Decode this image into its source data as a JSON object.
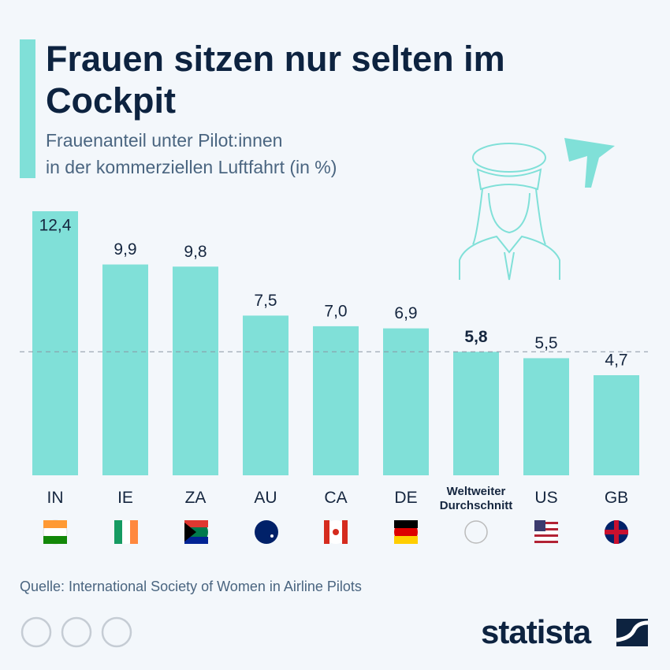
{
  "chart_data": {
    "type": "bar",
    "title": "Frauen sitzen nur selten im Cockpit",
    "subtitle": [
      "Frauenanteil unter Pilot:innen",
      "in der kommerziellen Luftfahrt (in %)"
    ],
    "categories": [
      "IN",
      "IE",
      "ZA",
      "AU",
      "CA",
      "DE",
      "Weltweiter Durchschnitt",
      "US",
      "GB"
    ],
    "values": [
      12.4,
      9.9,
      9.8,
      7.5,
      7.0,
      6.9,
      5.8,
      5.5,
      4.7
    ],
    "value_labels": [
      "12,4",
      "9,9",
      "9,8",
      "7,5",
      "7,0",
      "6,9",
      "5,8",
      "5,5",
      "4,7"
    ],
    "color": "#80e0d8",
    "highlight_index": 6,
    "source": "Quelle: International Society of Women in Airline Pilots",
    "brand": "statista"
  }
}
